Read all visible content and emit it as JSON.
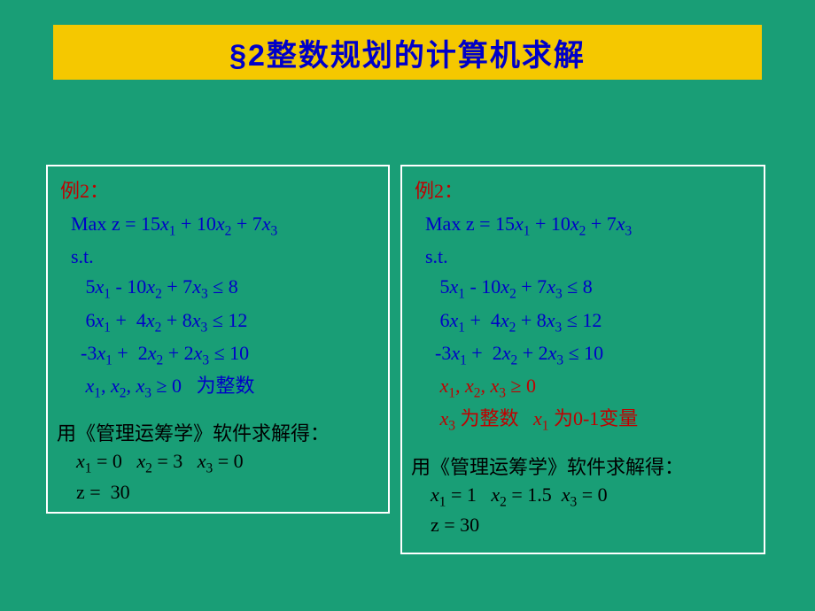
{
  "title": "§2整数规划的计算机求解",
  "colors": {
    "slide_bg": "#199e76",
    "title_bg": "#f5c800",
    "title_text": "#0000c8",
    "box_border": "#ffffff",
    "math_text": "#0000c8",
    "label_red": "#c00000",
    "body_black": "#000000"
  },
  "left": {
    "label": "例2：",
    "objective_prefix": "Max z = 15",
    "objective_mid1": " + 10",
    "objective_mid2": " + 7",
    "st": "s.t.",
    "c1_a": "5",
    "c1_b": " - 10",
    "c1_c": " + 7",
    "c1_rhs": " ≤ 8",
    "c2_a": "6",
    "c2_b": " +  4",
    "c2_c": " + 8",
    "c2_rhs": " ≤ 12",
    "c3_a": "-3",
    "c3_b": " +  2",
    "c3_c": " + 2",
    "c3_rhs": " ≤ 10",
    "cond_ge": " ≥ 0",
    "cond_tail": "   为整数",
    "solver": "用《管理运筹学》软件求解得：",
    "r1_a": " = 0   ",
    "r1_b": " = 3   ",
    "r1_c": " = 0",
    "r2": "z =  30"
  },
  "right": {
    "label": "例2：",
    "objective_prefix": "Max z = 15",
    "objective_mid1": " + 10",
    "objective_mid2": " + 7",
    "st": "s.t.",
    "c1_a": "5",
    "c1_b": " - 10",
    "c1_c": " + 7",
    "c1_rhs": " ≤ 8",
    "c2_a": "6",
    "c2_b": " +  4",
    "c2_c": " + 8",
    "c2_rhs": " ≤ 12",
    "c3_a": "-3",
    "c3_b": " +  2",
    "c3_c": " + 2",
    "c3_rhs": " ≤ 10",
    "cond_ge": " ≥ 0",
    "cond2_a": " 为整数   ",
    "cond2_b": " 为0-1变量",
    "solver": "用《管理运筹学》软件求解得：",
    "r1_a": " = 1   ",
    "r1_b": " = 1.5  ",
    "r1_c": " = 0",
    "r2": "z = 30"
  },
  "vars": {
    "x": "x",
    "s1": "1",
    "s2": "2",
    "s3": "3",
    "comma": ", "
  }
}
